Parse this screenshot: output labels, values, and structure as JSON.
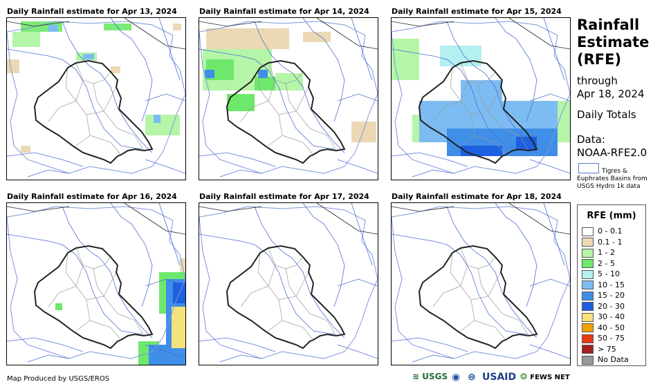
{
  "panels": [
    {
      "title": "Daily Rainfall estimate for Apr 13, 2024"
    },
    {
      "title": "Daily Rainfall estimate for Apr 14, 2024"
    },
    {
      "title": "Daily Rainfall estimate for Apr 15, 2024"
    },
    {
      "title": "Daily Rainfall estimate for Apr 16, 2024"
    },
    {
      "title": "Daily Rainfall estimate for Apr 17, 2024"
    },
    {
      "title": "Daily Rainfall estimate for Apr 18, 2024"
    }
  ],
  "sidebar": {
    "title_line1": "Rainfall",
    "title_line2": "Estimate",
    "title_line3": "(RFE)",
    "through": "through",
    "through_date": "Apr 18, 2024",
    "totals": "Daily Totals",
    "data_label": "Data:",
    "data_source": "NOAA-RFE2.0",
    "basin_line1": "Tigres &",
    "basin_line2": "Euphrates Basins from",
    "basin_line3": "USGS Hydro 1k data"
  },
  "legend": {
    "title": "RFE (mm)",
    "items": [
      {
        "label": "0 - 0.1",
        "color": "#ffffff"
      },
      {
        "label": "0.1 - 1",
        "color": "#ecd9b4"
      },
      {
        "label": "1 - 2",
        "color": "#b5f5a8"
      },
      {
        "label": "2 - 5",
        "color": "#6ee86a"
      },
      {
        "label": "5 - 10",
        "color": "#b4f0f0"
      },
      {
        "label": "10 - 15",
        "color": "#7dbcf2"
      },
      {
        "label": "15 - 20",
        "color": "#3f8ee8"
      },
      {
        "label": "20 - 30",
        "color": "#1d5fe0"
      },
      {
        "label": "30 - 40",
        "color": "#f5e27a"
      },
      {
        "label": "40 - 50",
        "color": "#f5a000"
      },
      {
        "label": "50 - 75",
        "color": "#ea3810"
      },
      {
        "label": "> 75",
        "color": "#a52020"
      },
      {
        "label": "No Data",
        "color": "#999999"
      }
    ]
  },
  "footer": {
    "credit": "Map Produced by USGS/EROS"
  },
  "logos": {
    "usgs": "USGS",
    "usaid": "USAID",
    "fewsnet": "FEWS NET"
  }
}
